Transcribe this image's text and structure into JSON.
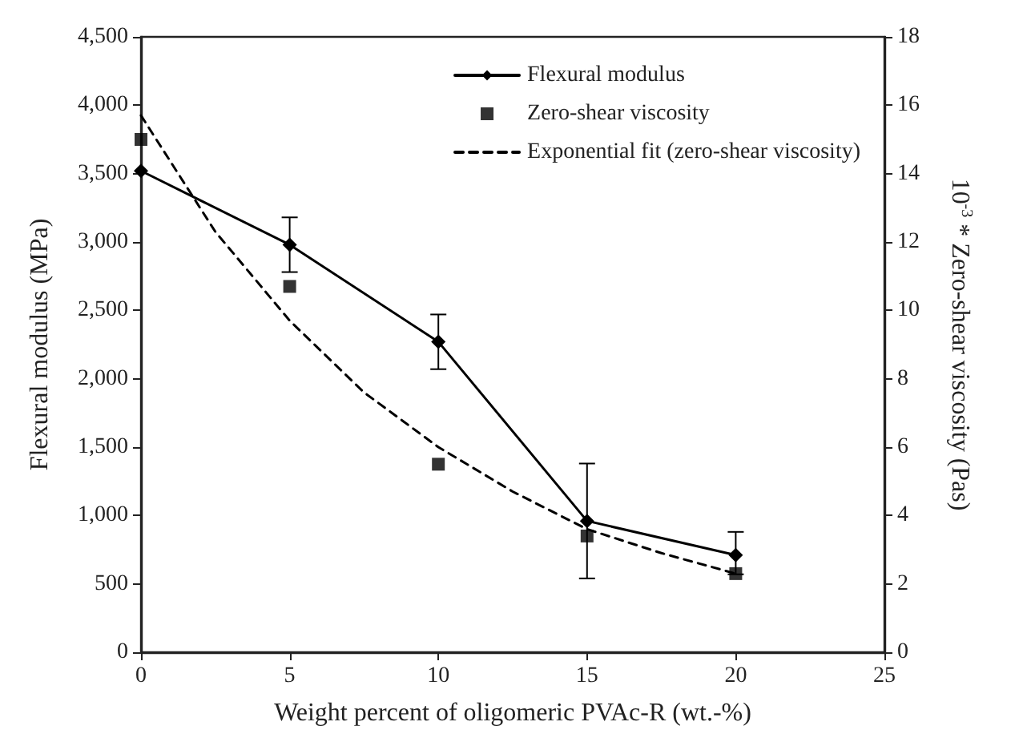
{
  "chart_data": {
    "type": "line",
    "xlabel": "Weight percent of oligomeric PVAc-R (wt.-%)",
    "ylabel": "Flexural modulus (MPa)",
    "y2label": "10$^{-3}$ * Zero-shear viscosity (Pas)",
    "x": [
      0,
      5,
      10,
      15,
      20
    ],
    "series": [
      {
        "name": "Flexural modulus",
        "type": "line",
        "color": "#000000",
        "marker": "diamond",
        "line_style": "solid",
        "values": [
          3520,
          2980,
          2270,
          960,
          710
        ],
        "errors": [
          null,
          200,
          200,
          [
            540,
            1380
          ],
          [
            570,
            880
          ]
        ]
      },
      {
        "name": "Zero-shear viscosity",
        "type": "scatter",
        "color": "#000000",
        "marker": "square",
        "axis": "y2",
        "values": [
          15.0,
          10.7,
          5.5,
          3.4,
          2.3
        ]
      },
      {
        "name": "Exponential fit (zero-shear viscosity)",
        "type": "line",
        "color": "#000000",
        "marker": "none",
        "line_style": "dashed",
        "axis": "y2",
        "x": [
          0,
          2.5,
          5,
          7.5,
          10,
          12.5,
          15,
          17.5,
          20
        ],
        "values": [
          15.7,
          12.3,
          9.7,
          7.6,
          6.0,
          4.7,
          3.6,
          2.9,
          2.3
        ]
      }
    ],
    "xlim": [
      0,
      25
    ],
    "xticks": [
      0,
      5,
      10,
      15,
      20,
      25
    ],
    "ylim": [
      0,
      4500
    ],
    "yticks": [
      {
        "value": 0,
        "label": "0"
      },
      {
        "value": 500,
        "label": "500"
      },
      {
        "value": 1000,
        "label": "1,000"
      },
      {
        "value": 1500,
        "label": "1,500"
      },
      {
        "value": 2000,
        "label": "2,000"
      },
      {
        "value": 2500,
        "label": "2,500"
      },
      {
        "value": 3000,
        "label": "3,000"
      },
      {
        "value": 3500,
        "label": "3,500"
      },
      {
        "value": 4000,
        "label": "4,000"
      },
      {
        "value": 4500,
        "label": "4,500"
      }
    ],
    "y2lim": [
      0,
      18
    ],
    "y2ticks": [
      0,
      2,
      4,
      6,
      8,
      10,
      12,
      14,
      16,
      18
    ],
    "grid": false,
    "legend": "top right"
  }
}
